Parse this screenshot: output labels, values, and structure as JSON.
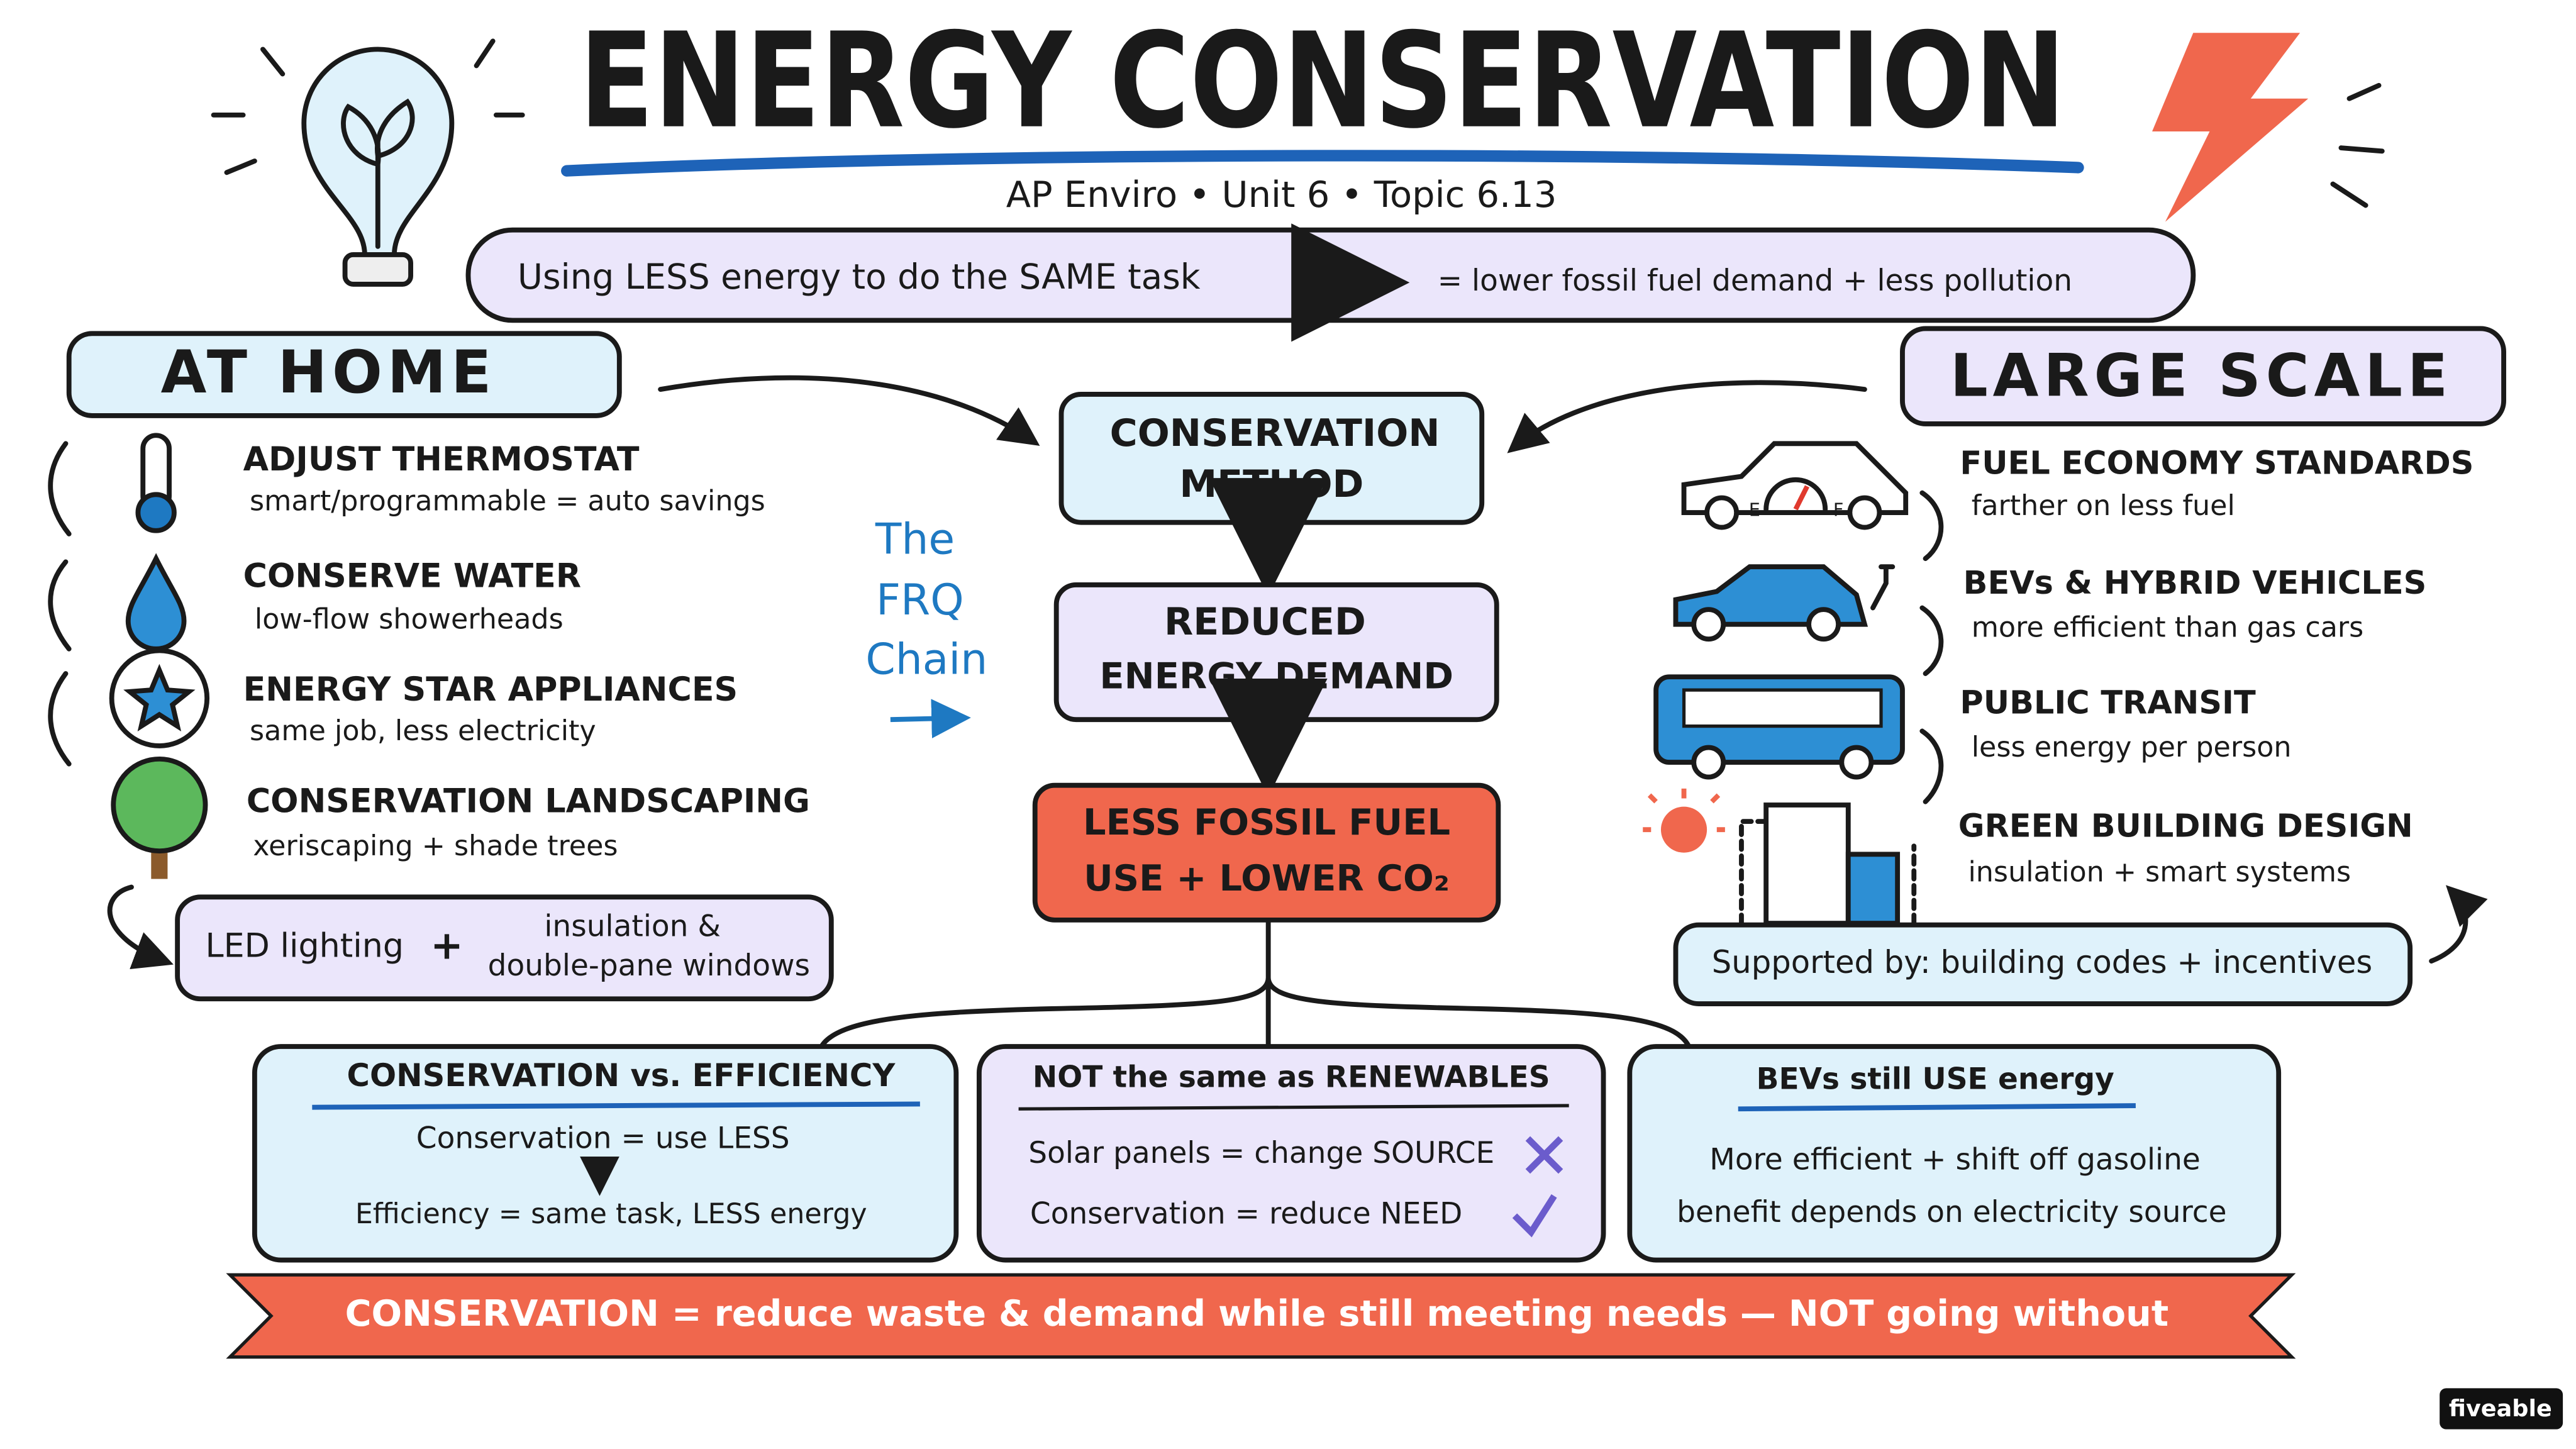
{
  "header": {
    "title": "ENERGY CONSERVATION",
    "subtitle": "AP Enviro • Unit 6 • Topic 6.13"
  },
  "definition": {
    "left": "Using LESS energy to do the SAME task",
    "right": "= lower fossil fuel demand + less pollution"
  },
  "at_home": {
    "title": "AT HOME",
    "items": [
      {
        "title": "ADJUST THERMOSTAT",
        "detail": "smart/programmable = auto savings"
      },
      {
        "title": "CONSERVE WATER",
        "detail": "low-flow showerheads"
      },
      {
        "title": "ENERGY STAR APPLIANCES",
        "detail": "same job, less electricity"
      },
      {
        "title": "CONSERVATION LANDSCAPING",
        "detail": "xeriscaping + shade trees"
      }
    ],
    "extras": {
      "left": "LED lighting",
      "plus": "+",
      "right": [
        "insulation &",
        "double-pane windows"
      ]
    }
  },
  "large_scale": {
    "title": "LARGE SCALE",
    "gauge": [
      "E",
      "F"
    ],
    "items": [
      {
        "title": "FUEL ECONOMY STANDARDS",
        "detail": "farther on less fuel"
      },
      {
        "title": "BEVs & HYBRID VEHICLES",
        "detail": "more efficient than gas cars"
      },
      {
        "title": "PUBLIC TRANSIT",
        "detail": "less energy per person"
      },
      {
        "title": "GREEN BUILDING DESIGN",
        "detail": "insulation + smart systems"
      }
    ],
    "footer": "Supported by: building codes + incentives"
  },
  "chain": {
    "label": [
      "The",
      "FRQ",
      "Chain"
    ],
    "steps": [
      [
        "CONSERVATION",
        "METHOD"
      ],
      [
        "REDUCED",
        "ENERGY DEMAND"
      ],
      [
        "LESS FOSSIL FUEL",
        "USE + LOWER CO₂"
      ]
    ]
  },
  "boxes": [
    {
      "title": "CONSERVATION vs. EFFICIENCY",
      "lines": [
        "Conservation = use LESS",
        "Efficiency = same task, LESS energy"
      ]
    },
    {
      "title": "NOT the same as RENEWABLES",
      "lines": [
        "Solar panels = change SOURCE",
        "Conservation = reduce NEED"
      ]
    },
    {
      "title": "BEVs still USE energy",
      "lines": [
        "More efficient + shift off gasoline",
        "benefit depends on electricity source"
      ]
    }
  ],
  "banner": "CONSERVATION = reduce waste & demand while still meeting needs — NOT going without",
  "watermark": "fiveable"
}
